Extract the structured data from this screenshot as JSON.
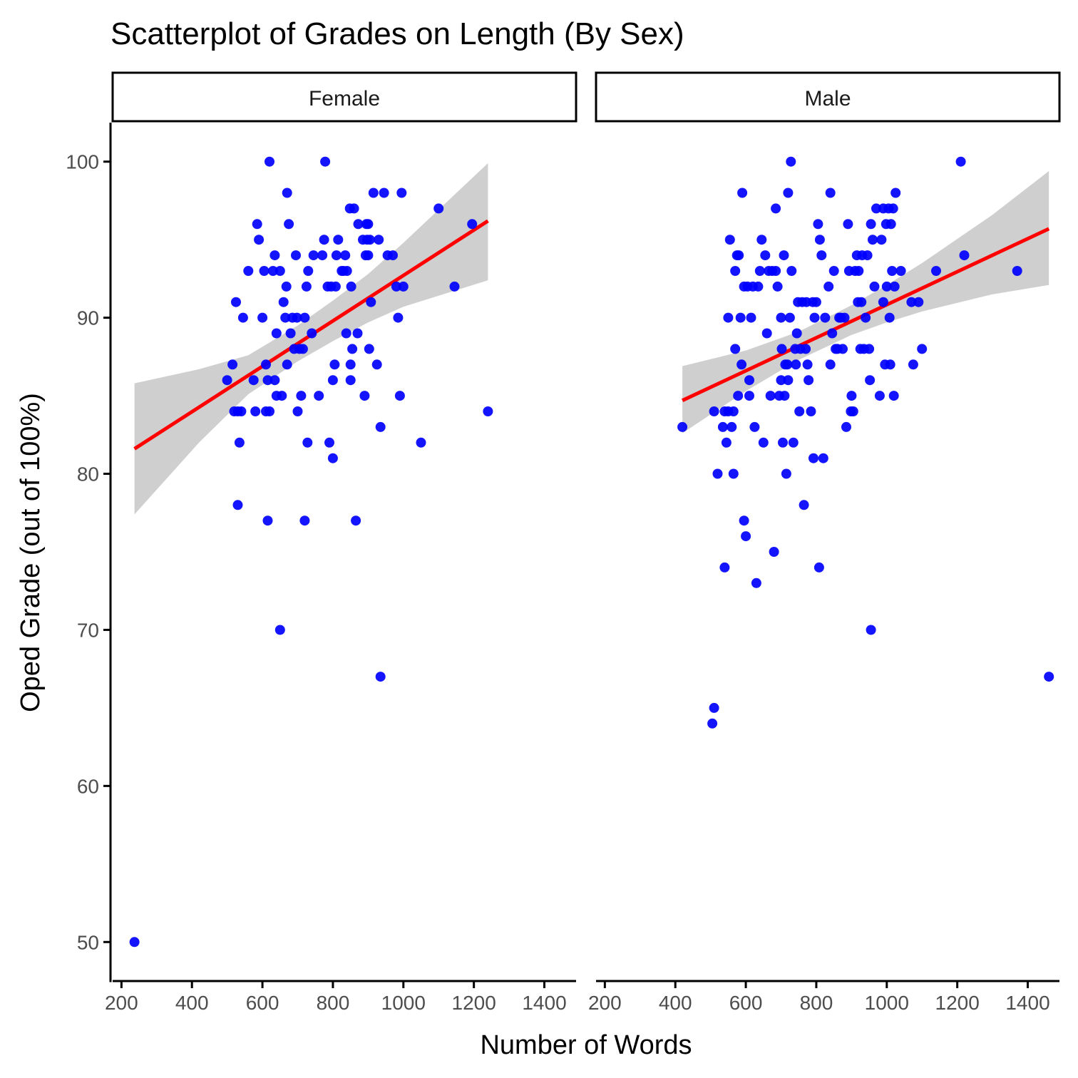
{
  "chart_data": {
    "type": "scatter",
    "title": "Scatterplot of Grades on Length (By Sex)",
    "xlabel": "Number of Words",
    "ylabel": "Oped Grade (out of 100%)",
    "xlim": [
      175,
      1490
    ],
    "ylim": [
      47.5,
      102.5
    ],
    "xticks": [
      200,
      400,
      600,
      800,
      1000,
      1200,
      1400
    ],
    "yticks": [
      50,
      60,
      70,
      80,
      90,
      100
    ],
    "colors": {
      "points": "#0000ff",
      "fit_line": "#ff0000",
      "ribbon": "#cccccc",
      "axis": "#000000"
    },
    "panels": [
      {
        "label": "Female",
        "fit": {
          "x": [
            237,
            420,
            560,
            700,
            800,
            900,
            1000,
            1240
          ],
          "y": [
            81.6,
            84.3,
            86.3,
            88.4,
            89.8,
            91.3,
            92.7,
            96.2
          ],
          "lower": [
            77.4,
            82.0,
            85.1,
            87.2,
            88.5,
            89.7,
            90.7,
            92.4
          ],
          "upper": [
            85.8,
            86.7,
            87.6,
            89.5,
            91.1,
            92.8,
            94.8,
            99.9
          ]
        },
        "points": [
          [
            237,
            50
          ],
          [
            500,
            86
          ],
          [
            515,
            87
          ],
          [
            520,
            84
          ],
          [
            525,
            91
          ],
          [
            530,
            84
          ],
          [
            530,
            78
          ],
          [
            535,
            82
          ],
          [
            540,
            84
          ],
          [
            545,
            90
          ],
          [
            560,
            93
          ],
          [
            575,
            86
          ],
          [
            580,
            84
          ],
          [
            585,
            96
          ],
          [
            590,
            95
          ],
          [
            600,
            90
          ],
          [
            605,
            93
          ],
          [
            610,
            87
          ],
          [
            610,
            84
          ],
          [
            615,
            86
          ],
          [
            615,
            77
          ],
          [
            620,
            84
          ],
          [
            620,
            100
          ],
          [
            630,
            93
          ],
          [
            635,
            94
          ],
          [
            635,
            86
          ],
          [
            640,
            89
          ],
          [
            640,
            85
          ],
          [
            650,
            93
          ],
          [
            650,
            70
          ],
          [
            655,
            85
          ],
          [
            660,
            91
          ],
          [
            665,
            90
          ],
          [
            668,
            92
          ],
          [
            670,
            98
          ],
          [
            670,
            87
          ],
          [
            675,
            96
          ],
          [
            680,
            89
          ],
          [
            685,
            90
          ],
          [
            690,
            88
          ],
          [
            695,
            94
          ],
          [
            698,
            90
          ],
          [
            700,
            84
          ],
          [
            705,
            88
          ],
          [
            710,
            85
          ],
          [
            715,
            88
          ],
          [
            720,
            90
          ],
          [
            720,
            77
          ],
          [
            725,
            92
          ],
          [
            728,
            82
          ],
          [
            730,
            93
          ],
          [
            740,
            89
          ],
          [
            745,
            94
          ],
          [
            760,
            85
          ],
          [
            770,
            94
          ],
          [
            775,
            95
          ],
          [
            778,
            100
          ],
          [
            785,
            92
          ],
          [
            790,
            82
          ],
          [
            795,
            92
          ],
          [
            800,
            81
          ],
          [
            800,
            86
          ],
          [
            805,
            87
          ],
          [
            808,
            92
          ],
          [
            810,
            94
          ],
          [
            815,
            95
          ],
          [
            825,
            93
          ],
          [
            830,
            93
          ],
          [
            835,
            94
          ],
          [
            838,
            89
          ],
          [
            840,
            93
          ],
          [
            848,
            97
          ],
          [
            850,
            87
          ],
          [
            850,
            86
          ],
          [
            852,
            92
          ],
          [
            855,
            88
          ],
          [
            860,
            97
          ],
          [
            865,
            77
          ],
          [
            870,
            89
          ],
          [
            872,
            96
          ],
          [
            885,
            95
          ],
          [
            890,
            85
          ],
          [
            893,
            94
          ],
          [
            895,
            96
          ],
          [
            897,
            95
          ],
          [
            900,
            96
          ],
          [
            900,
            94
          ],
          [
            903,
            88
          ],
          [
            905,
            95
          ],
          [
            908,
            91
          ],
          [
            915,
            98
          ],
          [
            925,
            87
          ],
          [
            930,
            95
          ],
          [
            935,
            67
          ],
          [
            935,
            83
          ],
          [
            945,
            98
          ],
          [
            955,
            94
          ],
          [
            970,
            94
          ],
          [
            980,
            92
          ],
          [
            985,
            90
          ],
          [
            990,
            85
          ],
          [
            995,
            98
          ],
          [
            1000,
            92
          ],
          [
            1050,
            82
          ],
          [
            1100,
            97
          ],
          [
            1145,
            92
          ],
          [
            1195,
            96
          ],
          [
            1240,
            84
          ]
        ]
      },
      {
        "label": "Male",
        "fit": {
          "x": [
            420,
            600,
            750,
            900,
            1000,
            1100,
            1300,
            1460
          ],
          "y": [
            84.7,
            86.6,
            88.2,
            89.8,
            90.9,
            91.9,
            94.0,
            95.7
          ],
          "lower": [
            82.6,
            85.3,
            87.3,
            88.9,
            89.7,
            90.4,
            91.5,
            92.1
          ],
          "upper": [
            86.9,
            87.9,
            89.1,
            90.8,
            92.1,
            93.5,
            96.6,
            99.4
          ]
        },
        "points": [
          [
            420,
            83
          ],
          [
            505,
            64
          ],
          [
            510,
            65
          ],
          [
            510,
            84
          ],
          [
            520,
            80
          ],
          [
            535,
            83
          ],
          [
            540,
            74
          ],
          [
            540,
            84
          ],
          [
            545,
            82
          ],
          [
            550,
            84
          ],
          [
            550,
            90
          ],
          [
            555,
            95
          ],
          [
            560,
            83
          ],
          [
            565,
            84
          ],
          [
            565,
            80
          ],
          [
            570,
            88
          ],
          [
            570,
            93
          ],
          [
            575,
            94
          ],
          [
            578,
            85
          ],
          [
            580,
            94
          ],
          [
            585,
            90
          ],
          [
            588,
            87
          ],
          [
            590,
            98
          ],
          [
            595,
            92
          ],
          [
            595,
            77
          ],
          [
            600,
            76
          ],
          [
            605,
            92
          ],
          [
            610,
            86
          ],
          [
            610,
            85
          ],
          [
            615,
            90
          ],
          [
            620,
            92
          ],
          [
            625,
            83
          ],
          [
            630,
            73
          ],
          [
            635,
            92
          ],
          [
            640,
            93
          ],
          [
            645,
            95
          ],
          [
            650,
            82
          ],
          [
            655,
            94
          ],
          [
            660,
            89
          ],
          [
            665,
            93
          ],
          [
            670,
            85
          ],
          [
            675,
            93
          ],
          [
            680,
            75
          ],
          [
            685,
            97
          ],
          [
            685,
            93
          ],
          [
            690,
            92
          ],
          [
            695,
            85
          ],
          [
            700,
            90
          ],
          [
            700,
            86
          ],
          [
            702,
            88
          ],
          [
            705,
            82
          ],
          [
            708,
            94
          ],
          [
            710,
            85
          ],
          [
            712,
            87
          ],
          [
            715,
            80
          ],
          [
            718,
            87
          ],
          [
            720,
            98
          ],
          [
            720,
            86
          ],
          [
            725,
            90
          ],
          [
            728,
            100
          ],
          [
            730,
            93
          ],
          [
            735,
            82
          ],
          [
            740,
            88
          ],
          [
            742,
            87
          ],
          [
            745,
            89
          ],
          [
            748,
            91
          ],
          [
            752,
            84
          ],
          [
            755,
            88
          ],
          [
            760,
            91
          ],
          [
            765,
            78
          ],
          [
            770,
            88
          ],
          [
            772,
            91
          ],
          [
            775,
            87
          ],
          [
            778,
            86
          ],
          [
            785,
            84
          ],
          [
            790,
            91
          ],
          [
            792,
            81
          ],
          [
            795,
            90
          ],
          [
            800,
            91
          ],
          [
            805,
            96
          ],
          [
            808,
            74
          ],
          [
            810,
            95
          ],
          [
            815,
            94
          ],
          [
            820,
            81
          ],
          [
            825,
            90
          ],
          [
            835,
            92
          ],
          [
            840,
            98
          ],
          [
            840,
            87
          ],
          [
            845,
            89
          ],
          [
            850,
            93
          ],
          [
            855,
            88
          ],
          [
            860,
            88
          ],
          [
            865,
            90
          ],
          [
            870,
            90
          ],
          [
            875,
            88
          ],
          [
            880,
            90
          ],
          [
            885,
            83
          ],
          [
            890,
            96
          ],
          [
            893,
            93
          ],
          [
            898,
            84
          ],
          [
            900,
            85
          ],
          [
            905,
            84
          ],
          [
            910,
            93
          ],
          [
            915,
            94
          ],
          [
            918,
            91
          ],
          [
            920,
            93
          ],
          [
            925,
            88
          ],
          [
            928,
            91
          ],
          [
            930,
            94
          ],
          [
            935,
            88
          ],
          [
            940,
            90
          ],
          [
            945,
            94
          ],
          [
            950,
            88
          ],
          [
            952,
            86
          ],
          [
            955,
            96
          ],
          [
            955,
            70
          ],
          [
            960,
            95
          ],
          [
            965,
            92
          ],
          [
            970,
            97
          ],
          [
            980,
            85
          ],
          [
            985,
            95
          ],
          [
            990,
            97
          ],
          [
            990,
            91
          ],
          [
            995,
            87
          ],
          [
            998,
            96
          ],
          [
            1000,
            92
          ],
          [
            1005,
            97
          ],
          [
            1008,
            90
          ],
          [
            1010,
            87
          ],
          [
            1012,
            96
          ],
          [
            1015,
            93
          ],
          [
            1018,
            97
          ],
          [
            1020,
            85
          ],
          [
            1022,
            92
          ],
          [
            1025,
            98
          ],
          [
            1040,
            93
          ],
          [
            1070,
            91
          ],
          [
            1075,
            87
          ],
          [
            1090,
            91
          ],
          [
            1100,
            88
          ],
          [
            1140,
            93
          ],
          [
            1210,
            100
          ],
          [
            1220,
            94
          ],
          [
            1370,
            93
          ],
          [
            1460,
            67
          ]
        ]
      }
    ]
  }
}
